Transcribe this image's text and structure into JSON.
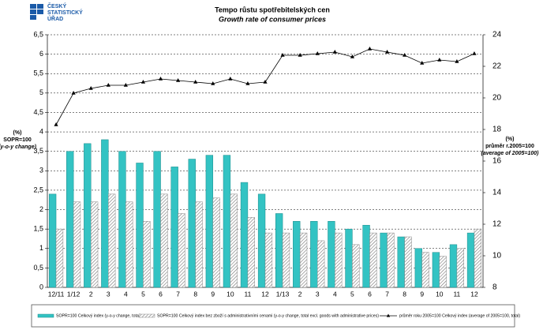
{
  "logo": {
    "lines": [
      "ČESKÝ",
      "STATISTICKÝ",
      "ÚŘAD"
    ]
  },
  "chart_data": {
    "type": "bar-line",
    "title": "Tempo růstu spotřebitelských  cen",
    "subtitle": "Growth rate  of consumer prices",
    "y_label": [
      "(%)",
      "SOPR=100",
      "(y-o-y change)"
    ],
    "y2_label": [
      "(%)",
      "průměr r.2005=100",
      "(average of 2005=100)"
    ],
    "categories": [
      "12/11",
      "1/12",
      "2",
      "3",
      "4",
      "5",
      "6",
      "7",
      "8",
      "9",
      "10",
      "11",
      "12",
      "1/13",
      "2",
      "3",
      "4",
      "5",
      "6",
      "7",
      "8",
      "9",
      "10",
      "11",
      "12"
    ],
    "series": [
      {
        "name": "SOPR=100 Celkový index (y-o-y change, total)",
        "color": "#33c3c3",
        "type": "bar",
        "values": [
          2.4,
          3.5,
          3.7,
          3.8,
          3.5,
          3.2,
          3.5,
          3.1,
          3.3,
          3.4,
          3.4,
          2.7,
          2.4,
          1.9,
          1.7,
          1.7,
          1.7,
          1.5,
          1.6,
          1.4,
          1.3,
          1.0,
          0.9,
          1.1,
          1.4
        ]
      },
      {
        "name": "SOPR=100 Celkový index bez zboží s administrativními cenami (y-o-y change, total excl. goods with administrative prices)",
        "color": "#888888",
        "type": "bar",
        "hatch": true,
        "values": [
          1.5,
          2.2,
          2.2,
          2.4,
          2.2,
          1.7,
          2.4,
          1.9,
          2.2,
          2.3,
          2.4,
          1.8,
          1.4,
          1.4,
          1.4,
          1.2,
          1.4,
          1.1,
          1.4,
          1.4,
          1.3,
          0.9,
          0.8,
          1.0,
          1.5
        ]
      },
      {
        "name": "průměr roku 2005=100 Celkový index (average of 2005=100, total)",
        "color": "#000000",
        "type": "line",
        "axis": "y2",
        "values": [
          18.3,
          20.3,
          20.6,
          20.8,
          20.8,
          21.0,
          21.2,
          21.1,
          21.0,
          20.9,
          21.2,
          20.9,
          21.0,
          22.7,
          22.7,
          22.8,
          22.9,
          22.6,
          23.1,
          22.9,
          22.7,
          22.2,
          22.4,
          22.3,
          22.8
        ]
      }
    ],
    "ylim": [
      0,
      6.5
    ],
    "yticks": [
      0,
      {
        "value": 0.5,
        "label": "0,5"
      },
      1,
      {
        "value": 1.5,
        "label": "1,5"
      },
      2,
      {
        "value": 2.5,
        "label": "2,5"
      },
      3,
      {
        "value": 3.5,
        "label": "3,5"
      },
      4,
      {
        "value": 4.5,
        "label": "4,5"
      },
      5,
      {
        "value": 5.5,
        "label": "5,5"
      },
      6,
      {
        "value": 6.5,
        "label": "6,5"
      }
    ],
    "y2lim": [
      8,
      24
    ],
    "y2ticks": [
      8,
      10,
      12,
      14,
      16,
      18,
      20,
      22,
      24
    ],
    "grid": true
  }
}
